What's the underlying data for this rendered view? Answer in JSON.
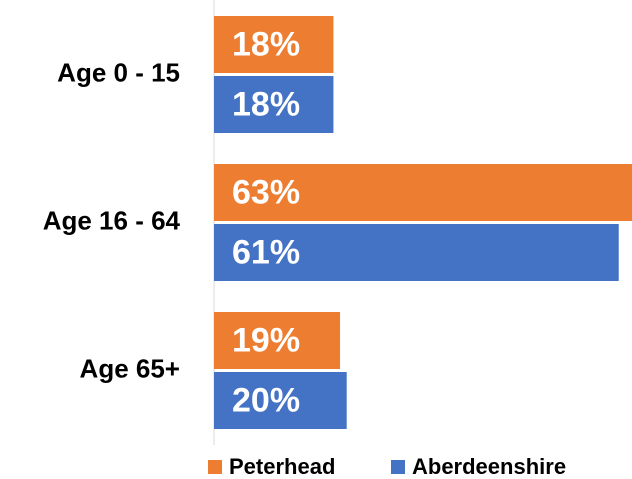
{
  "chart_data": {
    "type": "bar",
    "orientation": "horizontal",
    "categories": [
      "Age 0 - 15",
      "Age 16 - 64",
      "Age 65+"
    ],
    "series": [
      {
        "name": "Peterhead",
        "color": "#ED7D31",
        "values": [
          18,
          63,
          19
        ],
        "value_labels": [
          "18%",
          "63%",
          "19%"
        ]
      },
      {
        "name": "Aberdeenshire",
        "color": "#4472C4",
        "values": [
          18,
          61,
          20
        ],
        "value_labels": [
          "18%",
          "61%",
          "20%"
        ]
      }
    ],
    "xlim": [
      0,
      63
    ],
    "legend": "bottom"
  }
}
